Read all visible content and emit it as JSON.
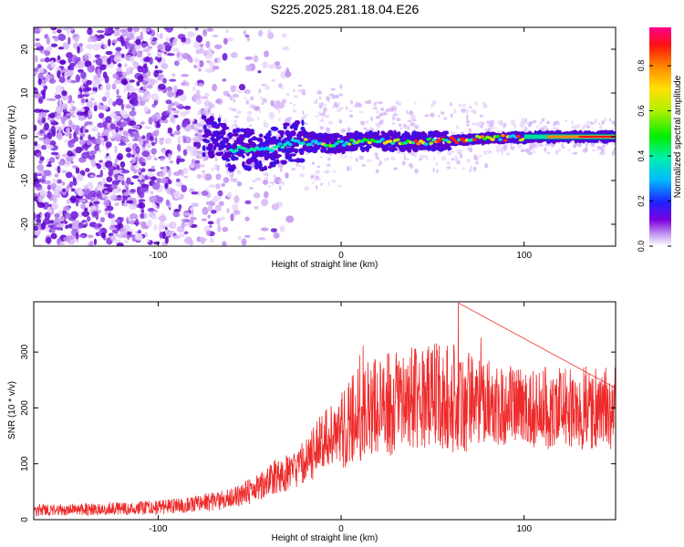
{
  "title": "S225.2025.281.18.04.E26",
  "chart_data": [
    {
      "type": "heatmap",
      "name": "spectrogram",
      "xlabel": "Height of straight line (km)",
      "ylabel": "Frequency (Hz)",
      "xlim": [
        -168,
        150
      ],
      "ylim": [
        -25,
        25
      ],
      "xticks": [
        -100,
        0,
        100
      ],
      "yticks": [
        -20,
        -10,
        0,
        10,
        20
      ],
      "colorbar": {
        "label": "Normalized spectral amplitude",
        "range": [
          0,
          0.97
        ],
        "ticks": [
          0.0,
          0.2,
          0.4,
          0.6,
          0.8
        ]
      },
      "ridge": {
        "description": "narrow high-amplitude line near 0 Hz",
        "points": [
          [
            -70,
            1.5
          ],
          [
            -60,
            -3
          ],
          [
            -40,
            -3
          ],
          [
            -25,
            -1
          ],
          [
            -10,
            -1.5
          ],
          [
            0,
            -1.5
          ],
          [
            20,
            -0.8
          ],
          [
            40,
            -1.3
          ],
          [
            60,
            -0.8
          ],
          [
            80,
            -0.4
          ],
          [
            100,
            -0.2
          ],
          [
            120,
            0
          ],
          [
            150,
            0
          ]
        ],
        "high_amplitude_from_x": 100
      }
    },
    {
      "type": "line",
      "name": "snr",
      "xlabel": "Height of straight line (km)",
      "ylabel": "SNR (10 * v/v)",
      "xlim": [
        -168,
        150
      ],
      "ylim": [
        0,
        390
      ],
      "xticks": [
        -100,
        0,
        100
      ],
      "yticks": [
        0,
        100,
        200,
        300
      ],
      "color": "#ee2a2a",
      "trend": {
        "x": [
          -168,
          -140,
          -100,
          -80,
          -60,
          -50,
          -40,
          -30,
          -20,
          -10,
          0,
          10,
          20,
          30,
          40,
          50,
          60,
          70,
          80,
          90,
          100,
          120,
          150
        ],
        "y": [
          17,
          18,
          22,
          28,
          38,
          50,
          70,
          85,
          100,
          140,
          160,
          190,
          200,
          210,
          215,
          220,
          218,
          215,
          210,
          205,
          200,
          200,
          200
        ]
      },
      "peak": {
        "x": 64,
        "y": 388
      }
    }
  ]
}
